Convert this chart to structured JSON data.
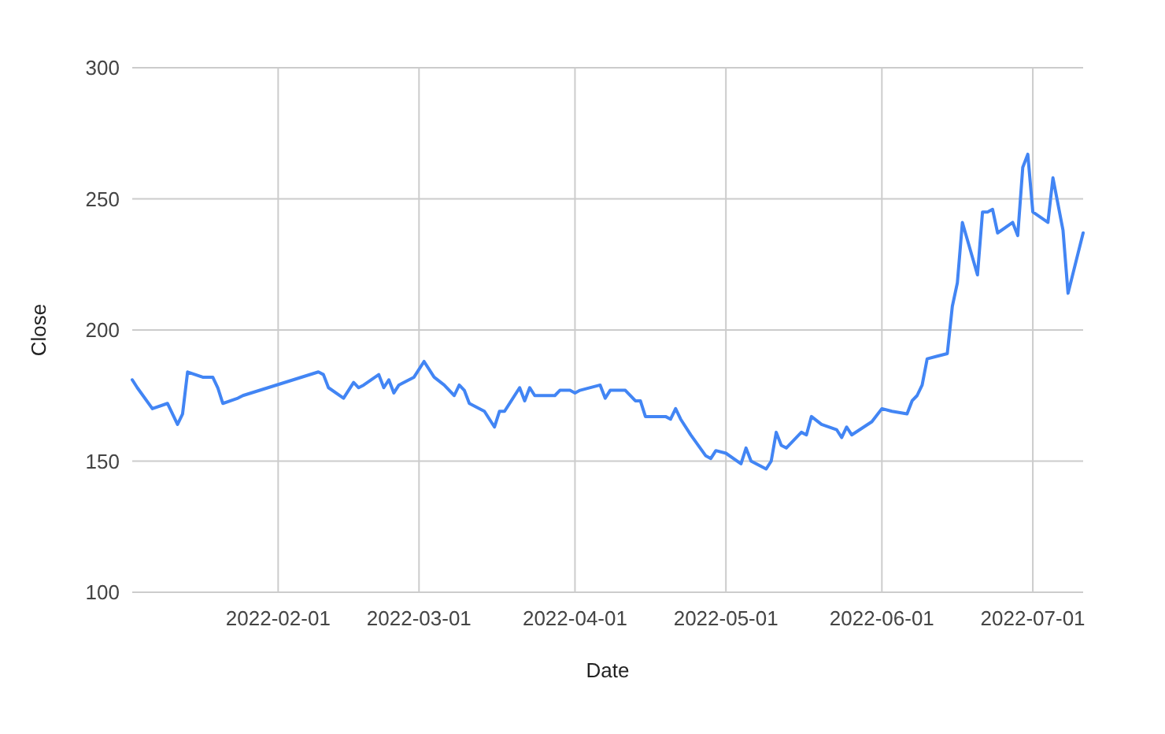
{
  "chart_data": {
    "type": "line",
    "xlabel": "Date",
    "ylabel": "Close",
    "x": [
      "2022-01-03",
      "2022-01-04",
      "2022-01-07",
      "2022-01-10",
      "2022-01-12",
      "2022-01-13",
      "2022-01-14",
      "2022-01-17",
      "2022-01-19",
      "2022-01-20",
      "2022-01-21",
      "2022-01-24",
      "2022-01-25",
      "2022-02-09",
      "2022-02-10",
      "2022-02-11",
      "2022-02-14",
      "2022-02-16",
      "2022-02-17",
      "2022-02-18",
      "2022-02-21",
      "2022-02-22",
      "2022-02-23",
      "2022-02-24",
      "2022-02-25",
      "2022-02-28",
      "2022-03-02",
      "2022-03-04",
      "2022-03-06",
      "2022-03-08",
      "2022-03-09",
      "2022-03-10",
      "2022-03-11",
      "2022-03-14",
      "2022-03-15",
      "2022-03-16",
      "2022-03-17",
      "2022-03-18",
      "2022-03-21",
      "2022-03-22",
      "2022-03-23",
      "2022-03-24",
      "2022-03-28",
      "2022-03-29",
      "2022-03-31",
      "2022-04-01",
      "2022-04-02",
      "2022-04-06",
      "2022-04-07",
      "2022-04-08",
      "2022-04-11",
      "2022-04-13",
      "2022-04-14",
      "2022-04-15",
      "2022-04-17",
      "2022-04-19",
      "2022-04-20",
      "2022-04-21",
      "2022-04-22",
      "2022-04-24",
      "2022-04-27",
      "2022-04-28",
      "2022-04-29",
      "2022-05-01",
      "2022-05-04",
      "2022-05-05",
      "2022-05-06",
      "2022-05-09",
      "2022-05-10",
      "2022-05-11",
      "2022-05-12",
      "2022-05-13",
      "2022-05-16",
      "2022-05-17",
      "2022-05-18",
      "2022-05-20",
      "2022-05-23",
      "2022-05-24",
      "2022-05-25",
      "2022-05-26",
      "2022-05-30",
      "2022-06-01",
      "2022-06-03",
      "2022-06-06",
      "2022-06-07",
      "2022-06-08",
      "2022-06-09",
      "2022-06-10",
      "2022-06-12",
      "2022-06-14",
      "2022-06-15",
      "2022-06-16",
      "2022-06-17",
      "2022-06-20",
      "2022-06-21",
      "2022-06-22",
      "2022-06-23",
      "2022-06-24",
      "2022-06-27",
      "2022-06-28",
      "2022-06-29",
      "2022-06-30",
      "2022-07-01",
      "2022-07-04",
      "2022-07-05",
      "2022-07-07",
      "2022-07-08",
      "2022-07-11"
    ],
    "series": [
      {
        "color": "#4285f4",
        "values": [
          181,
          178,
          170,
          172,
          164,
          168,
          184,
          182,
          182,
          178,
          172,
          174,
          175,
          184,
          183,
          178,
          174,
          180,
          178,
          179,
          183,
          178,
          181,
          176,
          179,
          182,
          188,
          182,
          179,
          175,
          179,
          177,
          172,
          169,
          166,
          163,
          169,
          169,
          178,
          173,
          178,
          175,
          175,
          177,
          177,
          176,
          177,
          179,
          174,
          177,
          177,
          173,
          173,
          167,
          167,
          167,
          166,
          170,
          166,
          160,
          152,
          151,
          154,
          153,
          149,
          155,
          150,
          147,
          150,
          161,
          156,
          155,
          161,
          160,
          167,
          164,
          162,
          159,
          163,
          160,
          165,
          170,
          169,
          168,
          173,
          175,
          179,
          189,
          190,
          191,
          209,
          218,
          241,
          221,
          245,
          245,
          246,
          237,
          241,
          236,
          262,
          267,
          245,
          241,
          258,
          238,
          214,
          237
        ]
      }
    ],
    "xlim": [
      "2022-01-03",
      "2022-07-11"
    ],
    "xticks": [
      "2022-02-01",
      "2022-03-01",
      "2022-04-01",
      "2022-05-01",
      "2022-06-01",
      "2022-07-01"
    ],
    "ylim": [
      100,
      300
    ],
    "yticks": [
      100,
      150,
      200,
      250,
      300
    ],
    "grid": true
  }
}
